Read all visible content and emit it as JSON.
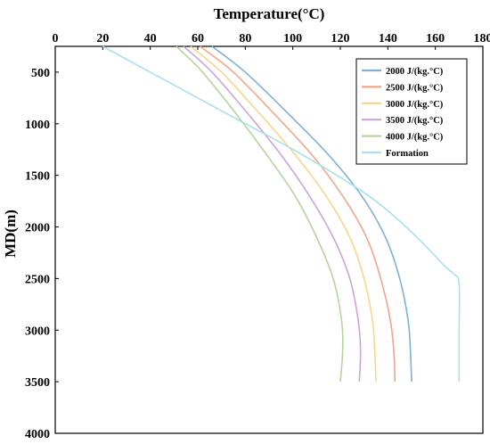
{
  "chart_data": {
    "type": "line",
    "xlabel": "Temperature(°C)",
    "ylabel": "MD(m)",
    "xlim": [
      0,
      180
    ],
    "ylim": [
      4000,
      250
    ],
    "x_axis_position": "top",
    "y_axis_inverted": true,
    "x_ticks": [
      0,
      20,
      40,
      60,
      80,
      100,
      120,
      140,
      160,
      180
    ],
    "y_ticks": [
      500,
      1000,
      1500,
      2000,
      2500,
      3000,
      3500,
      4000
    ],
    "grid": false,
    "legend_position": "top-right",
    "series": [
      {
        "name": "2000 J/(kg.°C)",
        "color": "#7fb0d6",
        "points": [
          [
            66,
            250
          ],
          [
            80,
            500
          ],
          [
            98,
            900
          ],
          [
            115,
            1300
          ],
          [
            129,
            1700
          ],
          [
            139,
            2100
          ],
          [
            145,
            2500
          ],
          [
            148.5,
            2900
          ],
          [
            149.5,
            3200
          ],
          [
            150,
            3500
          ]
        ]
      },
      {
        "name": "2500 J/(kg.°C)",
        "color": "#f2a58a",
        "points": [
          [
            61,
            250
          ],
          [
            75,
            500
          ],
          [
            92,
            900
          ],
          [
            108,
            1300
          ],
          [
            121,
            1700
          ],
          [
            131,
            2100
          ],
          [
            137,
            2500
          ],
          [
            141,
            2900
          ],
          [
            142.5,
            3200
          ],
          [
            143,
            3500
          ]
        ]
      },
      {
        "name": "3000 J/(kg.°C)",
        "color": "#f7d58e",
        "points": [
          [
            57,
            250
          ],
          [
            70,
            500
          ],
          [
            86,
            900
          ],
          [
            101,
            1300
          ],
          [
            114,
            1700
          ],
          [
            124,
            2100
          ],
          [
            130,
            2500
          ],
          [
            133.5,
            2900
          ],
          [
            134.5,
            3200
          ],
          [
            135,
            3500
          ]
        ]
      },
      {
        "name": "3500 J/(kg.°C)",
        "color": "#c9a6d6",
        "points": [
          [
            54,
            250
          ],
          [
            66,
            500
          ],
          [
            81,
            900
          ],
          [
            95,
            1300
          ],
          [
            107,
            1700
          ],
          [
            117,
            2100
          ],
          [
            124,
            2500
          ],
          [
            127.5,
            2900
          ],
          [
            128.5,
            3200
          ],
          [
            128,
            3500
          ]
        ]
      },
      {
        "name": "4000 J/(kg.°C)",
        "color": "#b6d49e",
        "points": [
          [
            51,
            250
          ],
          [
            62,
            500
          ],
          [
            76,
            900
          ],
          [
            89,
            1300
          ],
          [
            101,
            1700
          ],
          [
            110,
            2100
          ],
          [
            117,
            2500
          ],
          [
            120.5,
            2900
          ],
          [
            121,
            3200
          ],
          [
            120,
            3500
          ]
        ]
      },
      {
        "name": "Formation",
        "color": "#a9e0ea",
        "points": [
          [
            20,
            250
          ],
          [
            40,
            500
          ],
          [
            72,
            900
          ],
          [
            104,
            1300
          ],
          [
            132,
            1700
          ],
          [
            150,
            2050
          ],
          [
            164,
            2380
          ],
          [
            168,
            2460
          ],
          [
            170,
            2550
          ],
          [
            170,
            3000
          ],
          [
            170,
            3500
          ]
        ]
      }
    ]
  }
}
